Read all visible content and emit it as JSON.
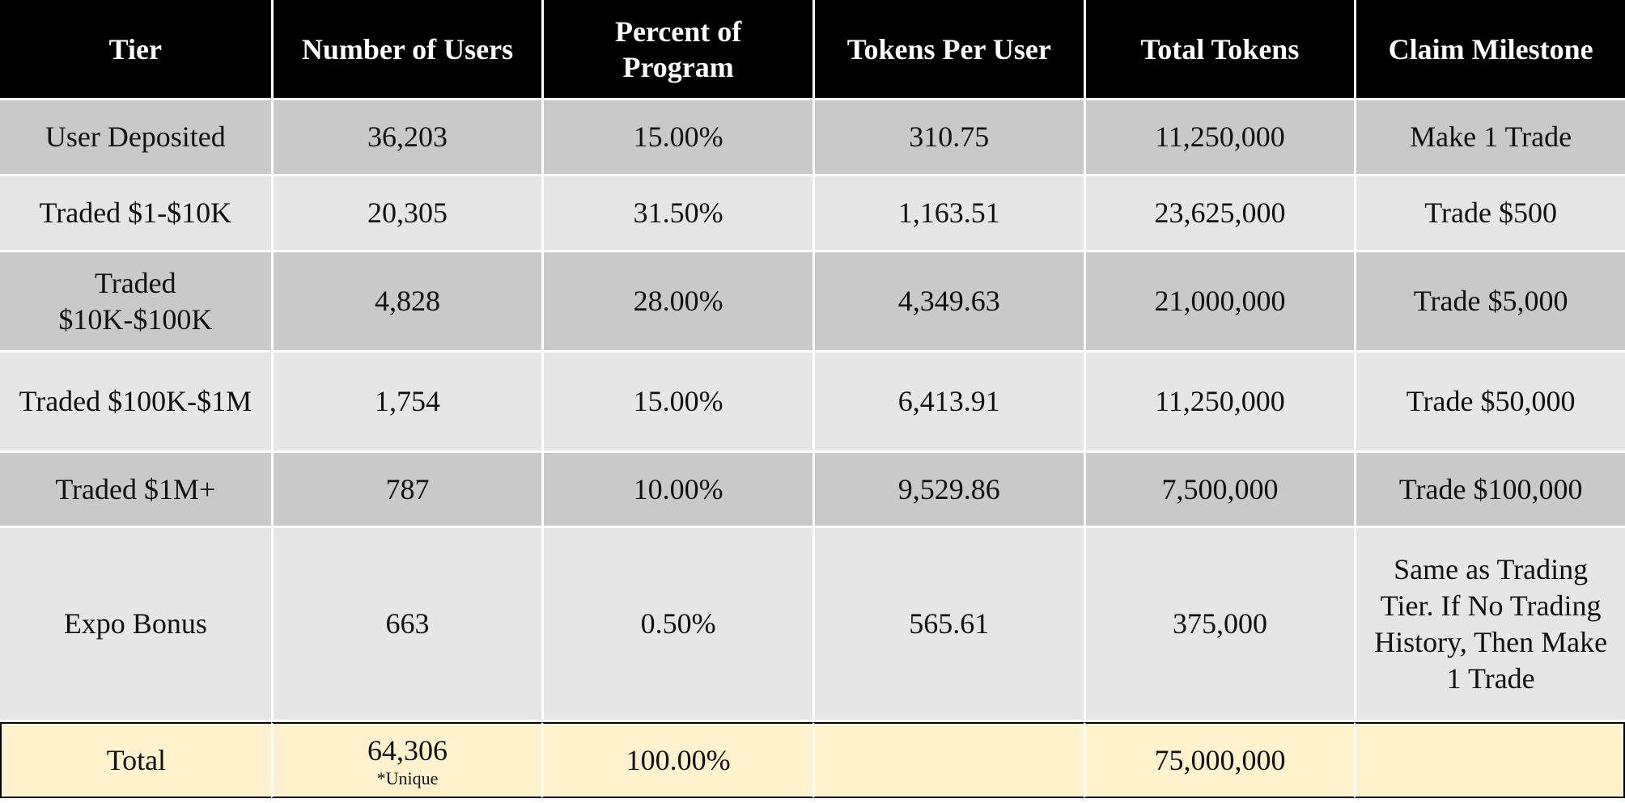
{
  "columns": [
    "Tier",
    "Number of Users",
    "Percent of Program",
    "Tokens Per User",
    "Total Tokens",
    "Claim Milestone"
  ],
  "rows": [
    {
      "tier": "User Deposited",
      "users": "36,203",
      "percent": "15.00%",
      "per_user": "310.75",
      "total": "11,250,000",
      "milestone": "Make 1 Trade"
    },
    {
      "tier": "Traded $1-$10K",
      "users": "20,305",
      "percent": "31.50%",
      "per_user": "1,163.51",
      "total": "23,625,000",
      "milestone": "Trade $500"
    },
    {
      "tier": "Traded $10K-$100K",
      "users": "4,828",
      "percent": "28.00%",
      "per_user": "4,349.63",
      "total": "21,000,000",
      "milestone": "Trade $5,000"
    },
    {
      "tier": "Traded $100K-$1M",
      "users": "1,754",
      "percent": "15.00%",
      "per_user": "6,413.91",
      "total": "11,250,000",
      "milestone": "Trade $50,000"
    },
    {
      "tier": "Traded $1M+",
      "users": "787",
      "percent": "10.00%",
      "per_user": "9,529.86",
      "total": "7,500,000",
      "milestone": "Trade $100,000"
    },
    {
      "tier": "Expo Bonus",
      "users": "663",
      "percent": "0.50%",
      "per_user": "565.61",
      "total": "375,000",
      "milestone": "Same as Trading Tier. If No Trading History, Then Make 1 Trade"
    }
  ],
  "total_row": {
    "tier": "Total",
    "users": "64,306",
    "users_note": "*Unique",
    "percent": "100.00%",
    "per_user": "",
    "total": "75,000,000",
    "milestone": ""
  },
  "colors": {
    "header_bg": "#000000",
    "header_text": "#ffffff",
    "row_dark": "#c9c9c9",
    "row_light": "#e6e6e6",
    "total_bg": "#fff2cc"
  }
}
